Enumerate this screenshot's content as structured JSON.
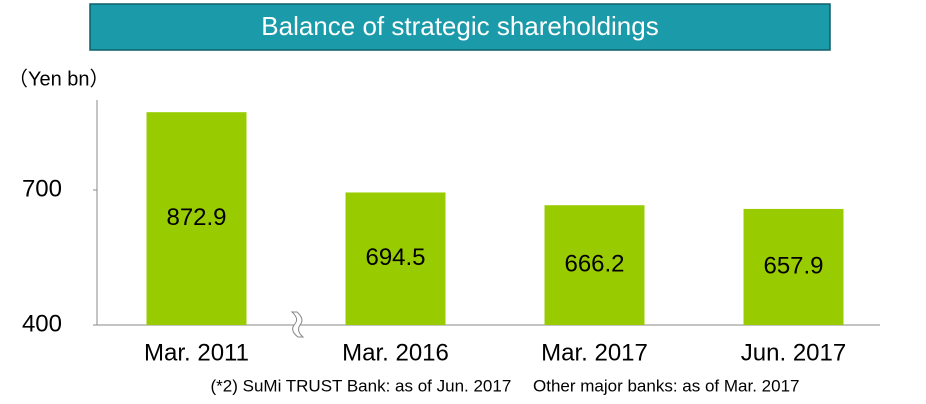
{
  "chart_data": {
    "type": "bar",
    "title": "Balance of strategic shareholdings",
    "y_label": "（Yen bn）",
    "categories": [
      "Mar. 2011",
      "Mar. 2016",
      "Mar. 2017",
      "Jun. 2017"
    ],
    "values": [
      872.9,
      694.5,
      666.2,
      657.9
    ],
    "color": "#99cc00",
    "ylim": [
      400,
      900
    ],
    "yticks": [
      400,
      700
    ],
    "axis_break": true,
    "footnote": "(*2) SuMi TRUST Bank: as of Jun. 2017　 Other major banks: as of Mar. 2017"
  }
}
